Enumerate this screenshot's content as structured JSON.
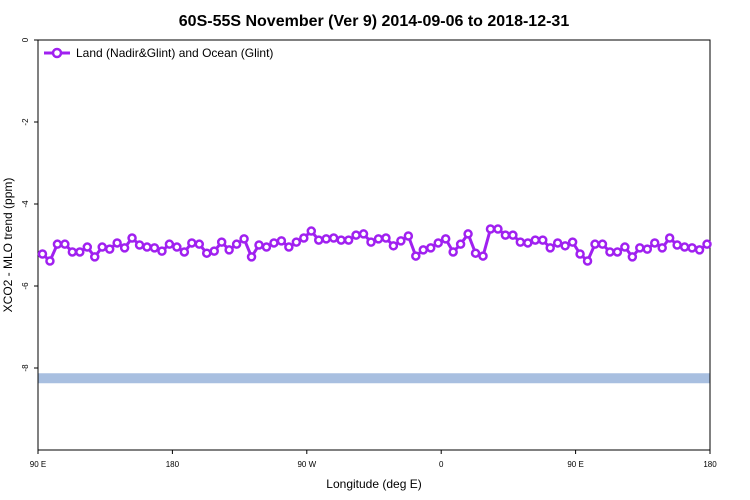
{
  "chart_data": {
    "type": "line",
    "title": "60S-55S November (Ver 9)   2014-09-06 to 2018-12-31",
    "xlabel": "Longitude (deg E)",
    "ylabel": "XCO2 - MLO trend (ppm)",
    "xlim": [
      90,
      540
    ],
    "ylim": [
      -10,
      0
    ],
    "xticks": [
      {
        "value": 90,
        "label": "90 E"
      },
      180,
      {
        "value": 270,
        "label": "90 W"
      },
      {
        "value": 360,
        "label": "0"
      },
      {
        "value": 450,
        "label": "90 E"
      },
      {
        "value": 540,
        "label": "180"
      }
    ],
    "yticks": [
      0,
      -2,
      -4,
      -6,
      -8
    ],
    "grid": false,
    "legend": "upper left",
    "reference_band": {
      "value": -8.25,
      "color": "#a8bfe0"
    },
    "x": [
      93,
      98,
      103,
      108,
      113,
      118,
      123,
      128,
      133,
      138,
      143,
      148,
      153,
      158,
      163,
      168,
      173,
      178,
      183,
      188,
      193,
      198,
      203,
      208,
      213,
      218,
      223,
      228,
      233,
      238,
      243,
      248,
      253,
      258,
      263,
      268,
      273,
      278,
      283,
      288,
      293,
      298,
      303,
      308,
      313,
      318,
      323,
      328,
      333,
      338,
      343,
      348,
      353,
      358,
      363,
      368,
      373,
      378,
      383,
      388,
      393,
      398,
      403,
      408,
      413,
      418,
      423,
      428,
      433,
      438,
      443,
      448,
      453,
      458,
      463,
      468,
      473,
      478,
      483,
      488,
      493,
      498,
      503,
      508,
      513,
      518,
      523,
      528,
      533,
      538
    ],
    "series": [
      {
        "name": "Land (Nadir&Glint) and Ocean (Glint)",
        "color": "#a020f0",
        "values": [
          -5.22,
          -5.39,
          -4.98,
          -4.98,
          -5.17,
          -5.17,
          -5.05,
          -5.29,
          -5.05,
          -5.1,
          -4.95,
          -5.07,
          -4.83,
          -5.0,
          -5.05,
          -5.07,
          -5.15,
          -4.98,
          -5.05,
          -5.17,
          -4.95,
          -4.98,
          -5.2,
          -5.15,
          -4.93,
          -5.12,
          -4.98,
          -4.85,
          -5.29,
          -5.0,
          -5.05,
          -4.95,
          -4.9,
          -5.05,
          -4.93,
          -4.83,
          -4.66,
          -4.88,
          -4.85,
          -4.83,
          -4.88,
          -4.88,
          -4.76,
          -4.73,
          -4.93,
          -4.85,
          -4.83,
          -5.02,
          -4.9,
          -4.78,
          -5.27,
          -5.12,
          -5.07,
          -4.95,
          -4.85,
          -5.17,
          -4.98,
          -4.73,
          -5.2,
          -5.27,
          -4.61,
          -4.61,
          -4.76,
          -4.76,
          -4.93,
          -4.95,
          -4.88,
          -4.88,
          -5.07,
          -4.95,
          -5.02,
          -4.93,
          -5.22,
          -5.39,
          -4.98,
          -4.98,
          -5.17,
          -5.17,
          -5.05,
          -5.29,
          -5.07,
          -5.1,
          -4.95,
          -5.07,
          -4.83,
          -5.0,
          -5.05,
          -5.07,
          -5.12,
          -4.98
        ]
      }
    ]
  }
}
